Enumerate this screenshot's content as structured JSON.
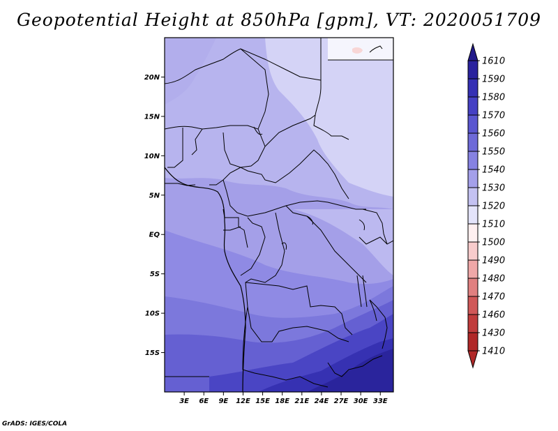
{
  "title": "Geopotential Height at 850hPa [gpm], VT: 2020051709",
  "credit": "GrADS: IGES/COLA",
  "map": {
    "lat_range": [
      -20,
      25
    ],
    "lon_range": [
      0,
      35
    ],
    "lat_labels": [
      "20N",
      "15N",
      "10N",
      "5N",
      "EQ",
      "5S",
      "10S",
      "15S"
    ],
    "lat_values": [
      20,
      15,
      10,
      5,
      0,
      -5,
      -10,
      -15
    ],
    "lon_labels": [
      "3E",
      "6E",
      "9E",
      "12E",
      "15E",
      "18E",
      "21E",
      "24E",
      "27E",
      "30E",
      "33E"
    ],
    "lon_values": [
      3,
      6,
      9,
      12,
      15,
      18,
      21,
      24,
      27,
      30,
      33
    ]
  },
  "colorbar": {
    "labels": [
      "1610",
      "1590",
      "1580",
      "1570",
      "1560",
      "1550",
      "1540",
      "1530",
      "1520",
      "1510",
      "1500",
      "1490",
      "1480",
      "1470",
      "1460",
      "1430",
      "1410"
    ],
    "colors": [
      "#221a8a",
      "#2a229e",
      "#3530b4",
      "#4540c4",
      "#5a56d0",
      "#6e6ad8",
      "#8682e2",
      "#a4a0ea",
      "#c4c2f2",
      "#e4e4fa",
      "#fff0f0",
      "#f8cccc",
      "#f0a8a8",
      "#e08080",
      "#d05858",
      "#c03c3c",
      "#b02828"
    ],
    "top_arrow_color": "#221a8a",
    "bottom_arrow_color": "#b02828"
  }
}
